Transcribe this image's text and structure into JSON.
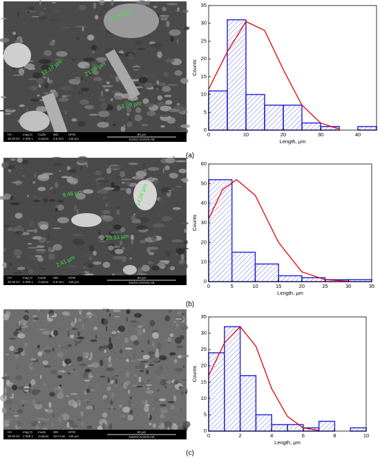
{
  "chart_data": [
    {
      "type": "histogram",
      "xlabel": "Length, μm",
      "ylabel": "Counts",
      "bins": [
        0,
        5,
        10,
        15,
        20,
        25,
        30,
        35,
        40,
        45
      ],
      "values": [
        11,
        31,
        10,
        7,
        7,
        2,
        1,
        0,
        1
      ],
      "color": "#2b2bd6",
      "fit": {
        "color": "#e00000",
        "x": [
          0,
          5,
          10,
          15,
          20,
          25,
          30,
          35
        ],
        "values": [
          11.5,
          22,
          30.5,
          28,
          17,
          7,
          2,
          0.3
        ]
      },
      "xlim": [
        0,
        45
      ],
      "xticks": [
        0,
        10,
        20,
        30,
        40
      ],
      "ylim": [
        0,
        35
      ],
      "yticks": [
        0,
        5,
        10,
        15,
        20,
        25,
        30,
        35
      ]
    },
    {
      "type": "histogram",
      "xlabel": "Length, μm",
      "ylabel": "Counts",
      "bins": [
        0,
        5,
        10,
        15,
        20,
        25,
        30,
        35
      ],
      "values": [
        52,
        15,
        9,
        3,
        2,
        1,
        1
      ],
      "color": "#2b2bd6",
      "fit": {
        "color": "#e00000",
        "x": [
          0,
          3,
          6,
          10,
          15,
          20,
          25,
          30
        ],
        "values": [
          32,
          47,
          52,
          44,
          20,
          5,
          1,
          0.2
        ]
      },
      "xlim": [
        0,
        35
      ],
      "xticks": [
        0,
        5,
        10,
        15,
        20,
        25,
        30,
        35
      ],
      "ylim": [
        0,
        60
      ],
      "yticks": [
        0,
        10,
        20,
        30,
        40,
        50,
        60
      ]
    },
    {
      "type": "histogram",
      "xlabel": "Length, μm",
      "ylabel": "Counts",
      "bins": [
        0,
        1,
        2,
        3,
        4,
        5,
        6,
        7,
        8,
        9,
        10
      ],
      "values": [
        24,
        32,
        17,
        5,
        2,
        2,
        1,
        3,
        0,
        1
      ],
      "color": "#2b2bd6",
      "fit": {
        "color": "#e00000",
        "x": [
          0,
          1,
          2,
          3,
          4,
          5,
          6,
          7
        ],
        "values": [
          17,
          27,
          32,
          26,
          13,
          4.5,
          1,
          0.2
        ]
      },
      "xlim": [
        0,
        10
      ],
      "xticks": [
        0,
        2,
        4,
        6,
        8,
        10
      ],
      "ylim": [
        0,
        35
      ],
      "yticks": [
        0,
        5,
        10,
        15,
        20,
        25,
        30,
        35
      ]
    }
  ],
  "panel_labels": [
    "(a)",
    "(b)",
    "(c)"
  ],
  "images": [
    {
      "measurements": [
        "15.63 µm",
        "12.19 µm",
        "21.96 µm",
        "9.09 µm"
      ],
      "info_header": [
        "HV",
        "mag ⊡",
        "mode",
        "WD",
        "HFW"
      ],
      "info_values": [
        "30.00 kV",
        "2 000 x",
        "Custom",
        "9.8 mm",
        "149 µm"
      ],
      "scale": "50 µm",
      "lab": "KazNU NANOLAB"
    },
    {
      "measurements": [
        "9.46 µm",
        "14.26 µm",
        "29.31 µm",
        "2.41 µm"
      ],
      "info_header": [
        "HV",
        "mag ⊡",
        "mode",
        "WD",
        "HFW"
      ],
      "info_values": [
        "30.00 kV",
        "2 000 x",
        "Custom",
        "9.9 mm",
        "149 µm"
      ],
      "scale": "50 µm",
      "lab": "KazNU NANOLAB"
    },
    {
      "measurements": [],
      "info_header": [
        "HV",
        "mag ⊡",
        "mode",
        "WD",
        "HFW"
      ],
      "info_values": [
        "30.00 kV",
        "2 000 x",
        "Custom",
        "10.0 mm",
        "149 µm"
      ],
      "scale": "50 µm",
      "lab": "KazNU NANOLAB"
    }
  ]
}
